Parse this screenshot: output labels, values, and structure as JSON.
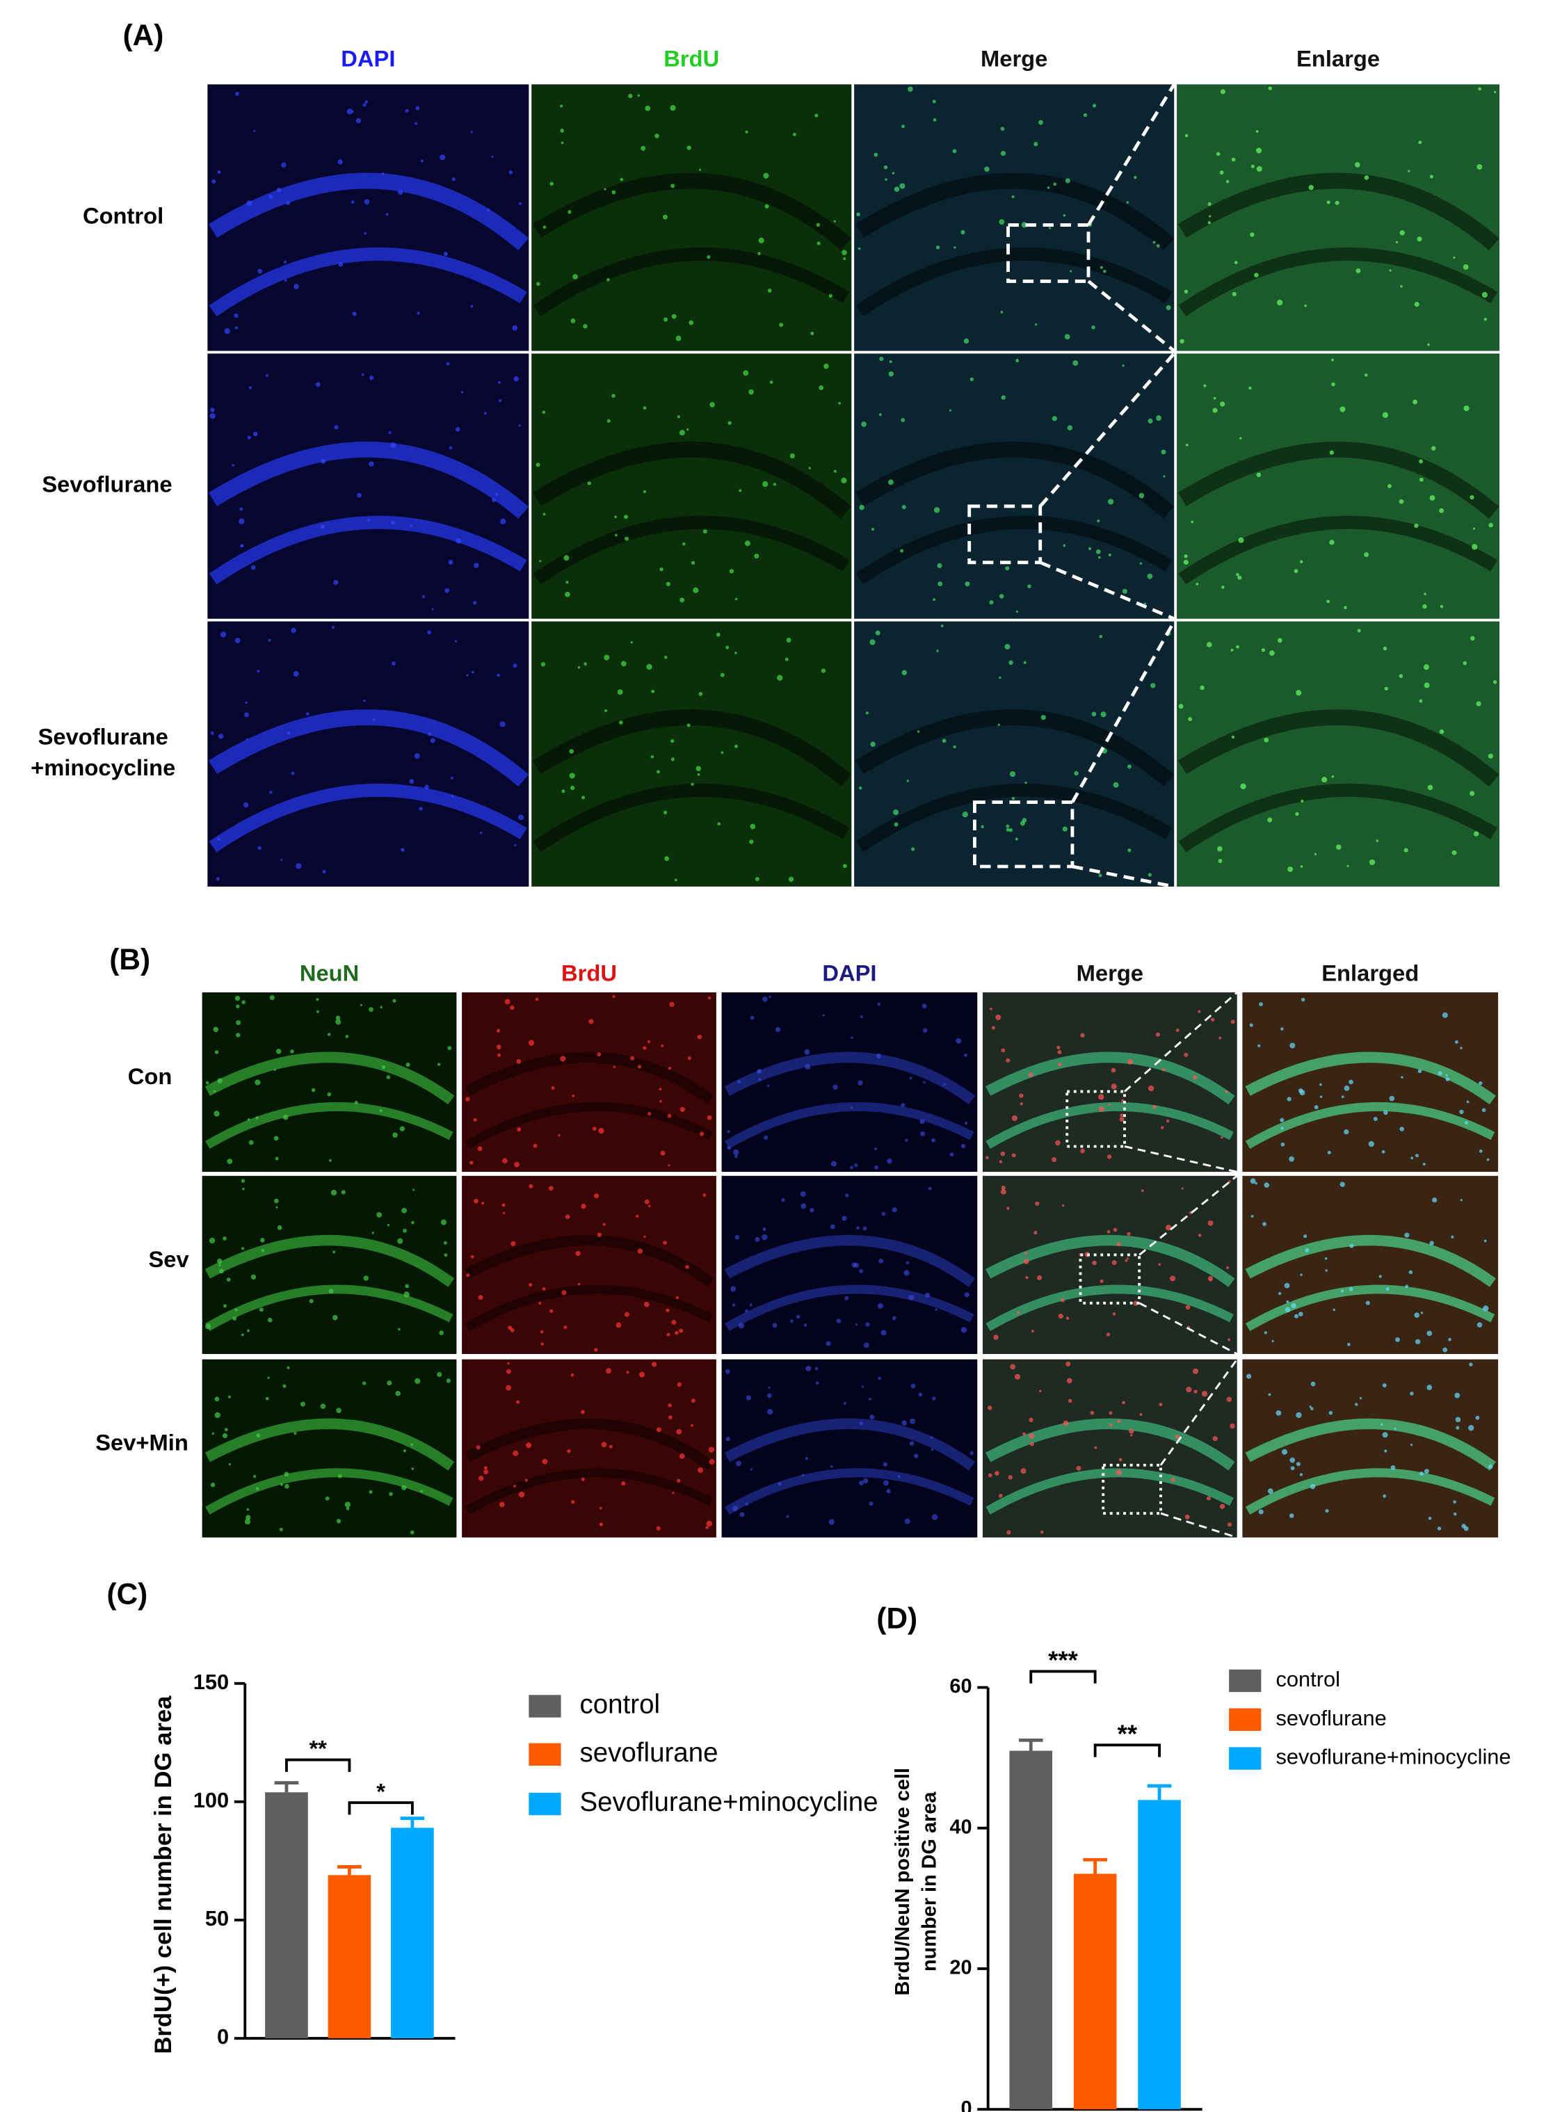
{
  "panel_a": {
    "label": "(A)",
    "columns": [
      "DAPI",
      "BrdU",
      "Merge",
      "Enlarge"
    ],
    "rows": [
      [
        "Control"
      ],
      [
        "Sevoflurane"
      ],
      [
        "Sevoflurane",
        "+minocycline"
      ]
    ]
  },
  "panel_b": {
    "label": "(B)",
    "columns": [
      "NeuN",
      "BrdU",
      "DAPI",
      "Merge",
      "Enlarged"
    ],
    "rows": [
      [
        "Con"
      ],
      [
        "Sev"
      ],
      [
        "Sev+Min"
      ]
    ]
  },
  "chart_data": [
    {
      "type": "bar",
      "panel_label": "(C)",
      "y_label": "BrdU(+) cell number in DG area",
      "ylim": [
        0,
        150
      ],
      "yticks": [
        0,
        50,
        100,
        150
      ],
      "series": [
        {
          "name": "control",
          "color": "#5f5f5f",
          "values": [
            104
          ],
          "errors": [
            4
          ]
        },
        {
          "name": "sevoflurane",
          "color": "#ff5a00",
          "values": [
            69
          ],
          "errors": [
            3.5
          ]
        },
        {
          "name": "Sevoflurane+minocycline",
          "color": "#00a8ff",
          "values": [
            89
          ],
          "errors": [
            4
          ]
        }
      ],
      "annotations": [
        "**",
        "*"
      ]
    },
    {
      "type": "bar",
      "panel_label": "(D)",
      "y_label": [
        "BrdU/NeuN positive cell",
        "number in DG area"
      ],
      "ylim": [
        0,
        60
      ],
      "yticks": [
        0,
        20,
        40,
        60
      ],
      "series": [
        {
          "name": "control",
          "color": "#5f5f5f",
          "values": [
            51
          ],
          "errors": [
            1.5
          ]
        },
        {
          "name": "sevoflurane",
          "color": "#ff5a00",
          "values": [
            33.5
          ],
          "errors": [
            2
          ]
        },
        {
          "name": "sevoflurane+minocycline",
          "color": "#00a8ff",
          "values": [
            44
          ],
          "errors": [
            2
          ]
        }
      ],
      "annotations": [
        "***",
        "**"
      ]
    }
  ]
}
